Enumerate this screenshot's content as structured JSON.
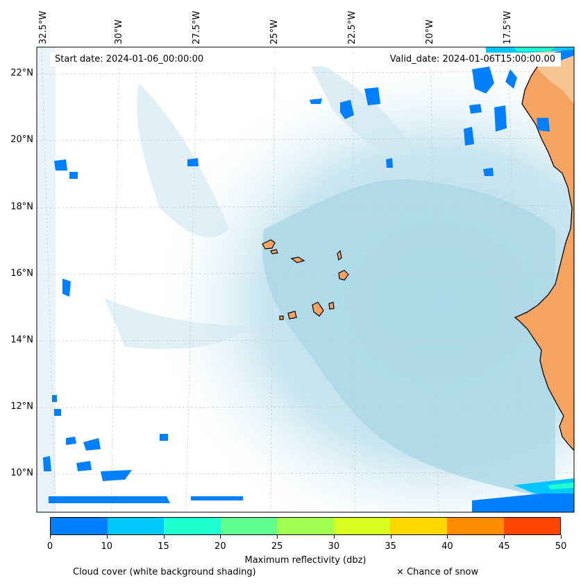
{
  "map": {
    "start_date": "Start date: 2024-01-06_00:00:00",
    "valid_date": "Valid_date: 2024-01-06T15:00:00.00",
    "longitude_labels": [
      "32.5°W",
      "30°W",
      "27.5°W",
      "25°W",
      "22.5°W",
      "20°W",
      "17.5°W"
    ],
    "latitude_labels": [
      "22°N",
      "20°N",
      "18°N",
      "16°N",
      "14°N",
      "12°N",
      "10°N"
    ],
    "land_color": "#f4a460",
    "ocean_shade_color": "#add8e6",
    "reflectivity_low_color": "#0080ff"
  },
  "colorbar": {
    "ticks": [
      "0",
      "10",
      "15",
      "20",
      "25",
      "30",
      "35",
      "40",
      "45",
      "50"
    ],
    "colors": [
      "#0080ff",
      "#00c8ff",
      "#20ffd0",
      "#60ff90",
      "#a0ff50",
      "#d8ff20",
      "#ffd800",
      "#ff8c00",
      "#ff4500"
    ],
    "title": "Maximum reflectivity (dbz)"
  },
  "legend": {
    "cloud_cover": "Cloud cover (white background shading)",
    "snow": "× Chance of snow"
  }
}
